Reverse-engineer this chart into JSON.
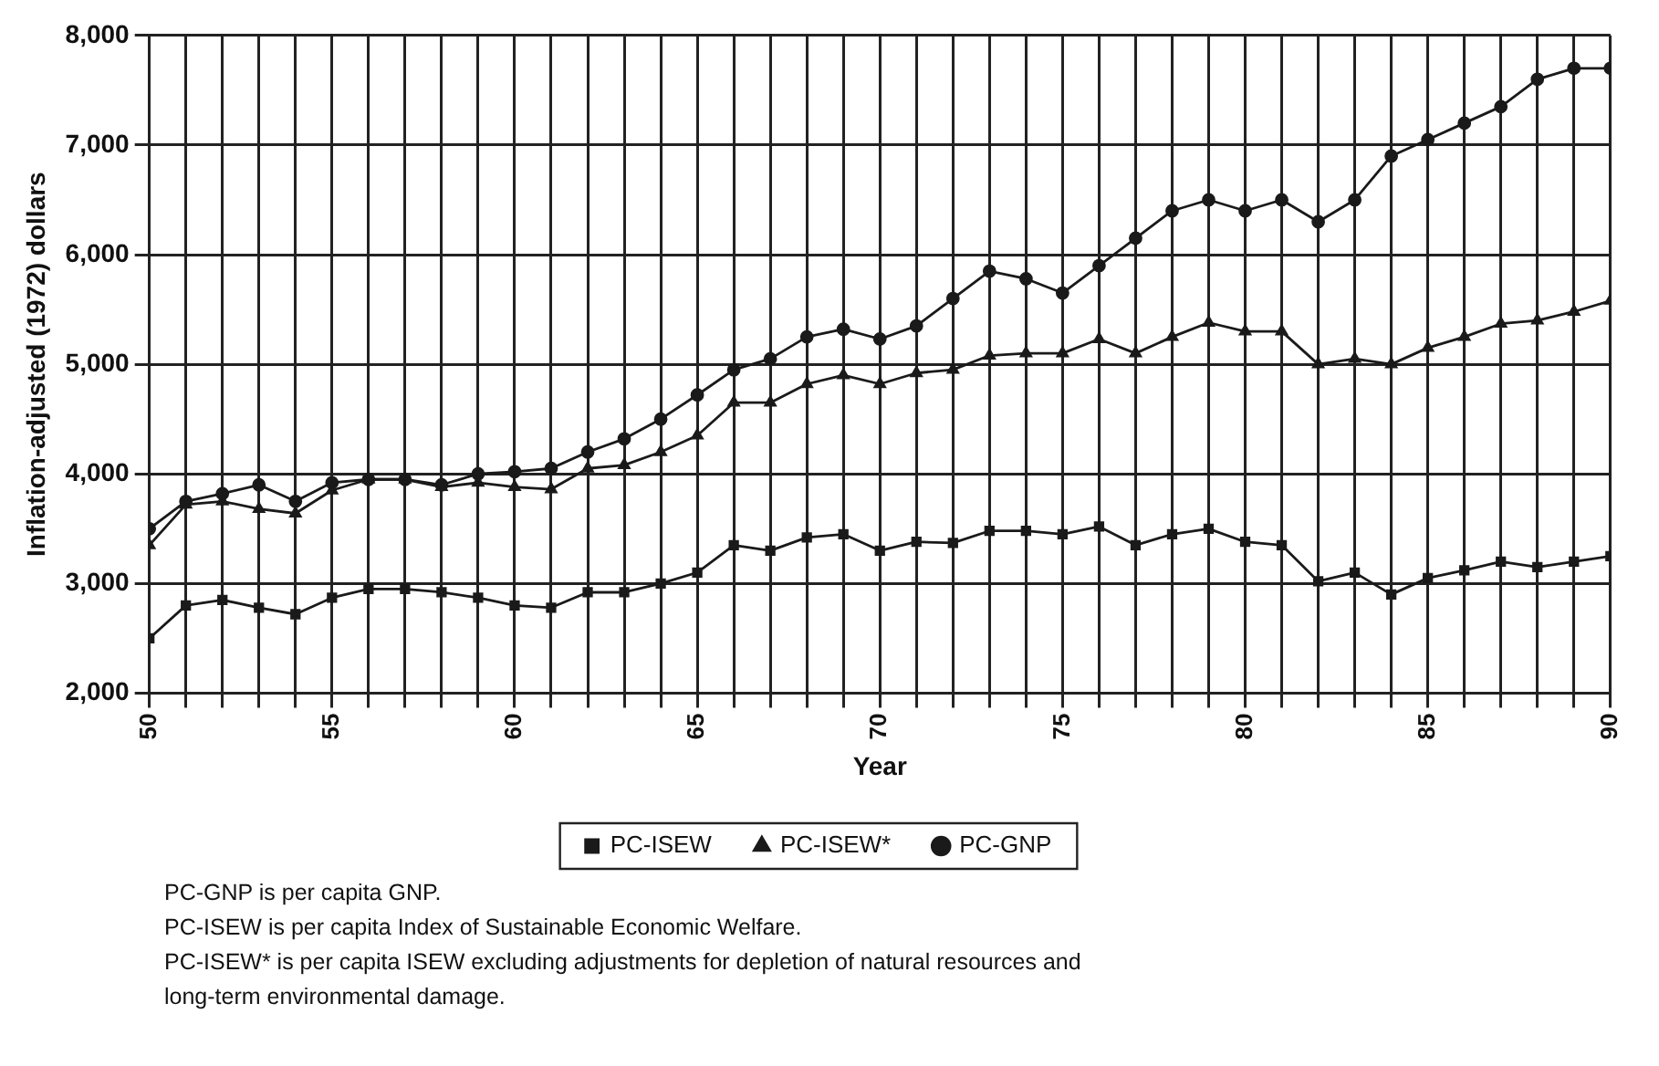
{
  "chart_data": {
    "type": "line",
    "xlabel": "Year",
    "ylabel": "Inflation-adjusted (1972) dollars",
    "x": [
      50,
      51,
      52,
      53,
      54,
      55,
      56,
      57,
      58,
      59,
      60,
      61,
      62,
      63,
      64,
      65,
      66,
      67,
      68,
      69,
      70,
      71,
      72,
      73,
      74,
      75,
      76,
      77,
      78,
      79,
      80,
      81,
      82,
      83,
      84,
      85,
      86,
      87,
      88,
      89,
      90
    ],
    "series": [
      {
        "name": "PC-ISEW",
        "color": "#1a1a1a",
        "marker": "square",
        "values": [
          2500,
          2800,
          2850,
          2780,
          2720,
          2870,
          2950,
          2950,
          2920,
          2870,
          2800,
          2780,
          2920,
          2920,
          3000,
          3100,
          3350,
          3300,
          3420,
          3450,
          3300,
          3380,
          3370,
          3480,
          3480,
          3450,
          3520,
          3350,
          3450,
          3500,
          3380,
          3350,
          3020,
          3100,
          2900,
          3050,
          3120,
          3200,
          3150,
          3200,
          3250
        ]
      },
      {
        "name": "PC-ISEW*",
        "color": "#1a1a1a",
        "marker": "triangle",
        "values": [
          3350,
          3720,
          3750,
          3680,
          3640,
          3850,
          3950,
          3950,
          3880,
          3920,
          3880,
          3860,
          4050,
          4080,
          4200,
          4350,
          4650,
          4650,
          4820,
          4900,
          4820,
          4920,
          4950,
          5080,
          5100,
          5100,
          5230,
          5100,
          5250,
          5380,
          5300,
          5300,
          5000,
          5050,
          5000,
          5150,
          5250,
          5370,
          5400,
          5480,
          5580
        ]
      },
      {
        "name": "PC-GNP",
        "color": "#1a1a1a",
        "marker": "circle",
        "values": [
          3500,
          3750,
          3820,
          3900,
          3750,
          3920,
          3950,
          3950,
          3900,
          4000,
          4020,
          4050,
          4200,
          4320,
          4500,
          4720,
          4950,
          5050,
          5250,
          5320,
          5230,
          5350,
          5600,
          5850,
          5780,
          5650,
          5900,
          6150,
          6400,
          6500,
          6400,
          6500,
          6300,
          6500,
          6900,
          7050,
          7200,
          7350,
          7600,
          7700,
          7700
        ]
      }
    ],
    "xlim": [
      50,
      90
    ],
    "xticks": [
      50,
      {
        "value": 51,
        "label": null
      },
      {
        "value": 52,
        "label": null
      },
      {
        "value": 53,
        "label": null
      },
      {
        "value": 54,
        "label": null
      },
      55,
      {
        "value": 56,
        "label": null
      },
      {
        "value": 57,
        "label": null
      },
      {
        "value": 58,
        "label": null
      },
      {
        "value": 59,
        "label": null
      },
      60,
      {
        "value": 61,
        "label": null
      },
      {
        "value": 62,
        "label": null
      },
      {
        "value": 63,
        "label": null
      },
      {
        "value": 64,
        "label": null
      },
      65,
      {
        "value": 66,
        "label": null
      },
      {
        "value": 67,
        "label": null
      },
      {
        "value": 68,
        "label": null
      },
      {
        "value": 69,
        "label": null
      },
      70,
      {
        "value": 71,
        "label": null
      },
      {
        "value": 72,
        "label": null
      },
      {
        "value": 73,
        "label": null
      },
      {
        "value": 74,
        "label": null
      },
      75,
      {
        "value": 76,
        "label": null
      },
      {
        "value": 77,
        "label": null
      },
      {
        "value": 78,
        "label": null
      },
      {
        "value": 79,
        "label": null
      },
      80,
      {
        "value": 81,
        "label": null
      },
      {
        "value": 82,
        "label": null
      },
      {
        "value": 83,
        "label": null
      },
      {
        "value": 84,
        "label": null
      },
      85,
      {
        "value": 86,
        "label": null
      },
      {
        "value": 87,
        "label": null
      },
      {
        "value": 88,
        "label": null
      },
      {
        "value": 89,
        "label": null
      },
      90
    ],
    "ylim": [
      2000,
      8000
    ],
    "yticks": [
      {
        "value": 2000,
        "label": "2,000"
      },
      {
        "value": 3000,
        "label": "3,000"
      },
      {
        "value": 4000,
        "label": "4,000"
      },
      {
        "value": 5000,
        "label": "5,000"
      },
      {
        "value": 6000,
        "label": "6,000"
      },
      {
        "value": 7000,
        "label": "7,000"
      },
      {
        "value": 8000,
        "label": "8,000"
      }
    ],
    "grid": true,
    "legend": "bottom",
    "line_style": "solid",
    "annotations": [
      "PC-GNP is per capita GNP.",
      "PC-ISEW is per capita Index of Sustainable Economic Welfare.",
      "PC-ISEW* is per capita ISEW excluding adjustments for depletion of natural resources and long-term environmental damage."
    ]
  }
}
